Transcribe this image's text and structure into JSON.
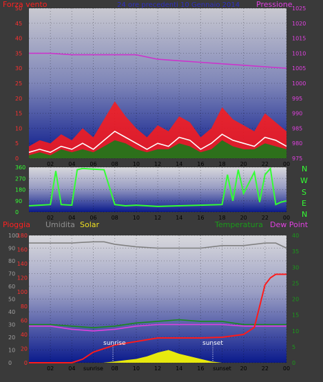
{
  "chart_data": [
    {
      "type": "line",
      "panel": "wind_pressure",
      "labels": {
        "left": "Forza vento",
        "center": "24 ore precedenti 10 Gennaio 2014",
        "right": "Pressione"
      },
      "x_ticks": [
        "02",
        "04",
        "06",
        "08",
        "10",
        "12",
        "14",
        "16",
        "18",
        "20",
        "22",
        "00"
      ],
      "yleft_ticks": [
        "0",
        "5",
        "10",
        "15",
        "20",
        "25",
        "30",
        "35",
        "40",
        "45",
        "50"
      ],
      "yright_ticks": [
        "975",
        "980",
        "985",
        "990",
        "995",
        "1000",
        "1005",
        "1010",
        "1015",
        "1020",
        "1025"
      ],
      "yleft_range": [
        0,
        50
      ],
      "yright_range": [
        975,
        1025
      ],
      "grid": true,
      "series": [
        {
          "name": "Pressione",
          "color": "#cc33cc",
          "axis": "right",
          "x": [
            0,
            2,
            4,
            6,
            8,
            10,
            12,
            14,
            16,
            18,
            20,
            22,
            24
          ],
          "values": [
            1010,
            1010,
            1009.5,
            1009.5,
            1009.5,
            1009.5,
            1008,
            1007.5,
            1007,
            1006.5,
            1006,
            1005.5,
            1005
          ]
        },
        {
          "color": "#ff1a1a",
          "axis": "left",
          "style": "raffica",
          "x": [
            0,
            1,
            2,
            3,
            4,
            5,
            6,
            7,
            8,
            9,
            10,
            11,
            12,
            13,
            14,
            15,
            16,
            17,
            18,
            19,
            20,
            21,
            22,
            23,
            24
          ],
          "values": [
            4,
            6,
            5,
            8,
            6,
            10,
            7,
            13,
            19,
            14,
            10,
            7,
            11,
            9,
            14,
            12,
            7,
            10,
            17,
            13,
            11,
            9,
            15,
            12,
            9
          ]
        },
        {
          "color": "#ffffff",
          "axis": "left",
          "style": "media",
          "x": [
            0,
            1,
            2,
            3,
            4,
            5,
            6,
            7,
            8,
            9,
            10,
            11,
            12,
            13,
            14,
            15,
            16,
            17,
            18,
            19,
            20,
            21,
            22,
            23,
            24
          ],
          "values": [
            2,
            3,
            2,
            4,
            3,
            5,
            3,
            6,
            9,
            7,
            5,
            3,
            5,
            4,
            7,
            6,
            3,
            5,
            8,
            6,
            5,
            4,
            7,
            6,
            4
          ]
        },
        {
          "color": "#1a7a1a",
          "axis": "left",
          "style": "fill",
          "x": [
            0,
            1,
            2,
            3,
            4,
            5,
            6,
            7,
            8,
            9,
            10,
            11,
            12,
            13,
            14,
            15,
            16,
            17,
            18,
            19,
            20,
            21,
            22,
            23,
            24
          ],
          "values": [
            1,
            2,
            1,
            3,
            2,
            3,
            2,
            4,
            6,
            5,
            3,
            2,
            3,
            3,
            5,
            4,
            2,
            3,
            6,
            4,
            3,
            3,
            5,
            4,
            3
          ]
        }
      ]
    },
    {
      "type": "line",
      "panel": "wind_direction",
      "x_ticks": [
        "02",
        "04",
        "06",
        "08",
        "10",
        "12",
        "14",
        "16",
        "18",
        "20",
        "22",
        "00"
      ],
      "yleft_ticks": [
        "0",
        "90",
        "180",
        "270",
        "360"
      ],
      "yleft_range": [
        0,
        360
      ],
      "compass": [
        "N",
        "W",
        "S",
        "E",
        "N"
      ],
      "series": [
        {
          "color": "#33ff33",
          "x": [
            0,
            1,
            2,
            2.5,
            3,
            4,
            4.5,
            5,
            6,
            7,
            8,
            9,
            10,
            12,
            14,
            16,
            18,
            18.5,
            19,
            19.5,
            20,
            21,
            21.5,
            22,
            22.5,
            23,
            23.5,
            24
          ],
          "values": [
            50,
            55,
            60,
            330,
            60,
            55,
            340,
            350,
            345,
            340,
            60,
            50,
            55,
            45,
            50,
            55,
            60,
            300,
            90,
            340,
            150,
            320,
            80,
            300,
            350,
            60,
            80,
            90
          ]
        }
      ]
    },
    {
      "type": "line",
      "panel": "rain_hum_temp",
      "labels": {
        "pioggia": "Pioggia",
        "umidita": "Umidita",
        "solar": "Solar",
        "temperatura": "Temperatura",
        "dewpoint": "Dew Point"
      },
      "x_ticks": [
        "02",
        "04",
        "sunrise",
        "08",
        "10",
        "12",
        "14",
        "16",
        "sunset",
        "20",
        "22",
        "00"
      ],
      "sunrise_label": "sunrise",
      "sunset_label": "sunset",
      "yleft_ticks": [
        "0",
        "10",
        "20",
        "30",
        "40",
        "50",
        "60",
        "70",
        "80",
        "90",
        "100"
      ],
      "yleft_range": [
        0,
        100
      ],
      "yrain_ticks": [
        "0",
        "20",
        "40",
        "60",
        "80",
        "100",
        "120",
        "140",
        "160",
        "180"
      ],
      "yrain_range": [
        0,
        180
      ],
      "yright_ticks": [
        "0",
        "5",
        "10",
        "15",
        "20",
        "25",
        "30",
        "35",
        "40"
      ],
      "yright_range": [
        0,
        40
      ],
      "series": [
        {
          "name": "Umidita",
          "color": "#808080",
          "axis": "left",
          "x": [
            0,
            2,
            4,
            6,
            7,
            8,
            10,
            12,
            14,
            16,
            18,
            20,
            22,
            23,
            24
          ],
          "values": [
            94,
            94,
            94,
            95,
            95,
            93,
            91,
            90,
            90,
            90,
            92,
            92,
            94,
            94,
            90
          ]
        },
        {
          "name": "Temperatura",
          "color": "#1a8a1a",
          "axis": "right",
          "x": [
            0,
            2,
            4,
            6,
            8,
            10,
            12,
            14,
            16,
            18,
            20,
            22,
            24
          ],
          "values": [
            12,
            12,
            11.5,
            11,
            11.5,
            12.5,
            13,
            13.5,
            13,
            13,
            12,
            12,
            12
          ]
        },
        {
          "name": "Dew Point",
          "color": "#e040e0",
          "axis": "right",
          "x": [
            0,
            2,
            4,
            6,
            8,
            10,
            12,
            14,
            16,
            18,
            20,
            22,
            24
          ],
          "values": [
            11.5,
            11.5,
            10.5,
            10,
            10.5,
            11.5,
            12,
            12,
            12,
            12,
            11.5,
            11.5,
            11.5
          ]
        },
        {
          "name": "Pioggia",
          "color": "#ff1a1a",
          "axis": "rain",
          "x": [
            0,
            4,
            5,
            6,
            7,
            8,
            10,
            12,
            14,
            16,
            18,
            20,
            21,
            22,
            22.5,
            23,
            24
          ],
          "values": [
            0,
            0,
            5,
            15,
            20,
            25,
            30,
            35,
            35,
            35,
            36,
            40,
            50,
            110,
            120,
            125,
            125
          ]
        },
        {
          "name": "Solar",
          "color": "#ffff00",
          "axis": "left",
          "x": [
            0,
            6.9,
            8,
            9,
            10,
            11,
            12,
            13,
            14,
            15,
            16,
            17,
            18,
            24
          ],
          "values": [
            0,
            0,
            1,
            2,
            3,
            5,
            8,
            10,
            7,
            5,
            3,
            1,
            0,
            0
          ]
        }
      ]
    }
  ]
}
